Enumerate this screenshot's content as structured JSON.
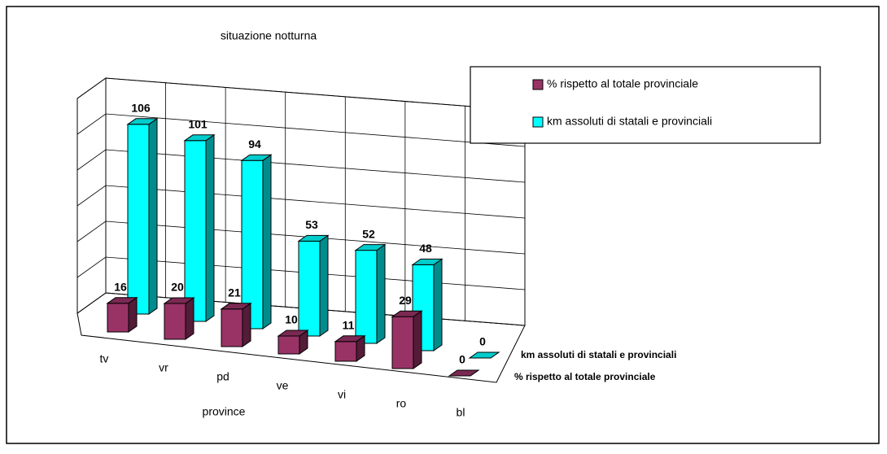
{
  "chart_data": {
    "type": "bar3d",
    "title": "situazione notturna",
    "x_label": "province",
    "categories": [
      "tv",
      "vr",
      "pd",
      "ve",
      "vi",
      "ro",
      "bl"
    ],
    "series": [
      {
        "name": "% rispetto al totale provinciale",
        "color": "#993366",
        "values": [
          16,
          20,
          21,
          10,
          11,
          29,
          0
        ]
      },
      {
        "name": "km assoluti di statali e provinciali",
        "color": "#00ffff",
        "values": [
          106,
          101,
          94,
          53,
          52,
          48,
          0
        ]
      }
    ],
    "ylim": [
      0,
      120
    ],
    "yticks": [
      0,
      20,
      40,
      60,
      80,
      100,
      120
    ],
    "grid": true,
    "legend": "top-right"
  }
}
